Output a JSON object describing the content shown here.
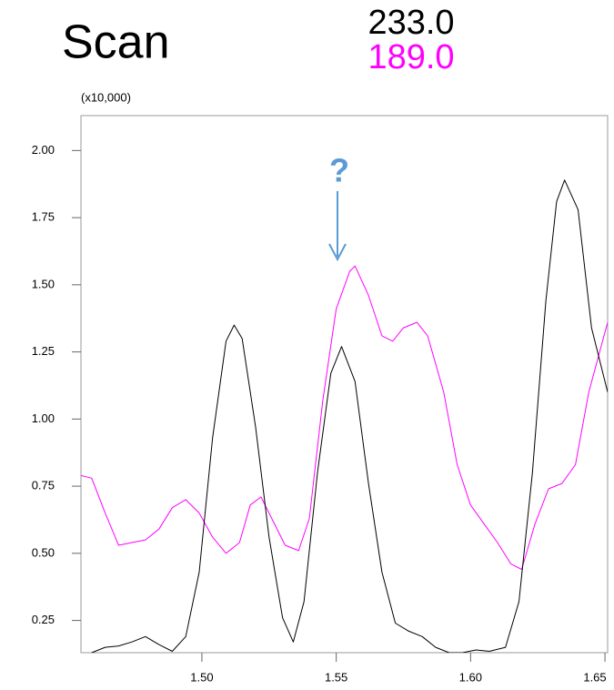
{
  "chart_data": {
    "type": "line",
    "title": "Scan",
    "y_multiplier": "(x10,000)",
    "annotation": "?",
    "xlim": [
      1.455,
      1.651
    ],
    "ylim": [
      0.13,
      2.13
    ],
    "xticks": [
      {
        "value": 1.5,
        "label": "1.50"
      },
      {
        "value": 1.55,
        "label": "1.55"
      },
      {
        "value": 1.6,
        "label": "1.60"
      },
      {
        "value": 1.65,
        "label": "1.65"
      }
    ],
    "yticks": [
      0.25,
      {
        "value": 0.5,
        "label": "0.50"
      },
      0.75,
      {
        "value": 1.0,
        "label": "1.00"
      },
      1.25,
      {
        "value": 1.5,
        "label": "1.50"
      },
      1.75,
      {
        "value": 2.0,
        "label": "2.00"
      }
    ],
    "series": [
      {
        "name": "233.0",
        "color": "#000000",
        "x": [
          1.459,
          1.464,
          1.469,
          1.474,
          1.479,
          1.484,
          1.489,
          1.494,
          1.499,
          1.504,
          1.509,
          1.512,
          1.515,
          1.52,
          1.525,
          1.53,
          1.534,
          1.538,
          1.543,
          1.548,
          1.552,
          1.557,
          1.562,
          1.567,
          1.572,
          1.577,
          1.582,
          1.587,
          1.592,
          1.597,
          1.602,
          1.607,
          1.613,
          1.618,
          1.623,
          1.628,
          1.632,
          1.635,
          1.64,
          1.645,
          1.651
        ],
        "values": [
          0.13,
          0.15,
          0.155,
          0.17,
          0.19,
          0.16,
          0.135,
          0.19,
          0.43,
          0.93,
          1.29,
          1.35,
          1.3,
          0.97,
          0.56,
          0.26,
          0.17,
          0.32,
          0.8,
          1.17,
          1.27,
          1.14,
          0.76,
          0.43,
          0.24,
          0.21,
          0.19,
          0.15,
          0.13,
          0.13,
          0.14,
          0.135,
          0.15,
          0.32,
          0.8,
          1.44,
          1.81,
          1.89,
          1.78,
          1.34,
          1.1
        ]
      },
      {
        "name": "189.0",
        "color": "#ff00ff",
        "x": [
          1.455,
          1.459,
          1.464,
          1.469,
          1.474,
          1.479,
          1.484,
          1.489,
          1.494,
          1.499,
          1.504,
          1.509,
          1.514,
          1.518,
          1.522,
          1.526,
          1.531,
          1.536,
          1.54,
          1.545,
          1.55,
          1.555,
          1.557,
          1.562,
          1.567,
          1.571,
          1.575,
          1.58,
          1.584,
          1.59,
          1.595,
          1.6,
          1.605,
          1.61,
          1.615,
          1.619,
          1.624,
          1.629,
          1.634,
          1.639,
          1.644,
          1.651
        ],
        "values": [
          0.79,
          0.78,
          0.65,
          0.53,
          0.54,
          0.55,
          0.59,
          0.67,
          0.7,
          0.65,
          0.56,
          0.5,
          0.54,
          0.68,
          0.71,
          0.63,
          0.53,
          0.51,
          0.63,
          1.07,
          1.41,
          1.55,
          1.57,
          1.46,
          1.31,
          1.29,
          1.34,
          1.36,
          1.31,
          1.1,
          0.83,
          0.68,
          0.61,
          0.54,
          0.46,
          0.44,
          0.61,
          0.74,
          0.76,
          0.83,
          1.1,
          1.36
        ]
      }
    ]
  }
}
